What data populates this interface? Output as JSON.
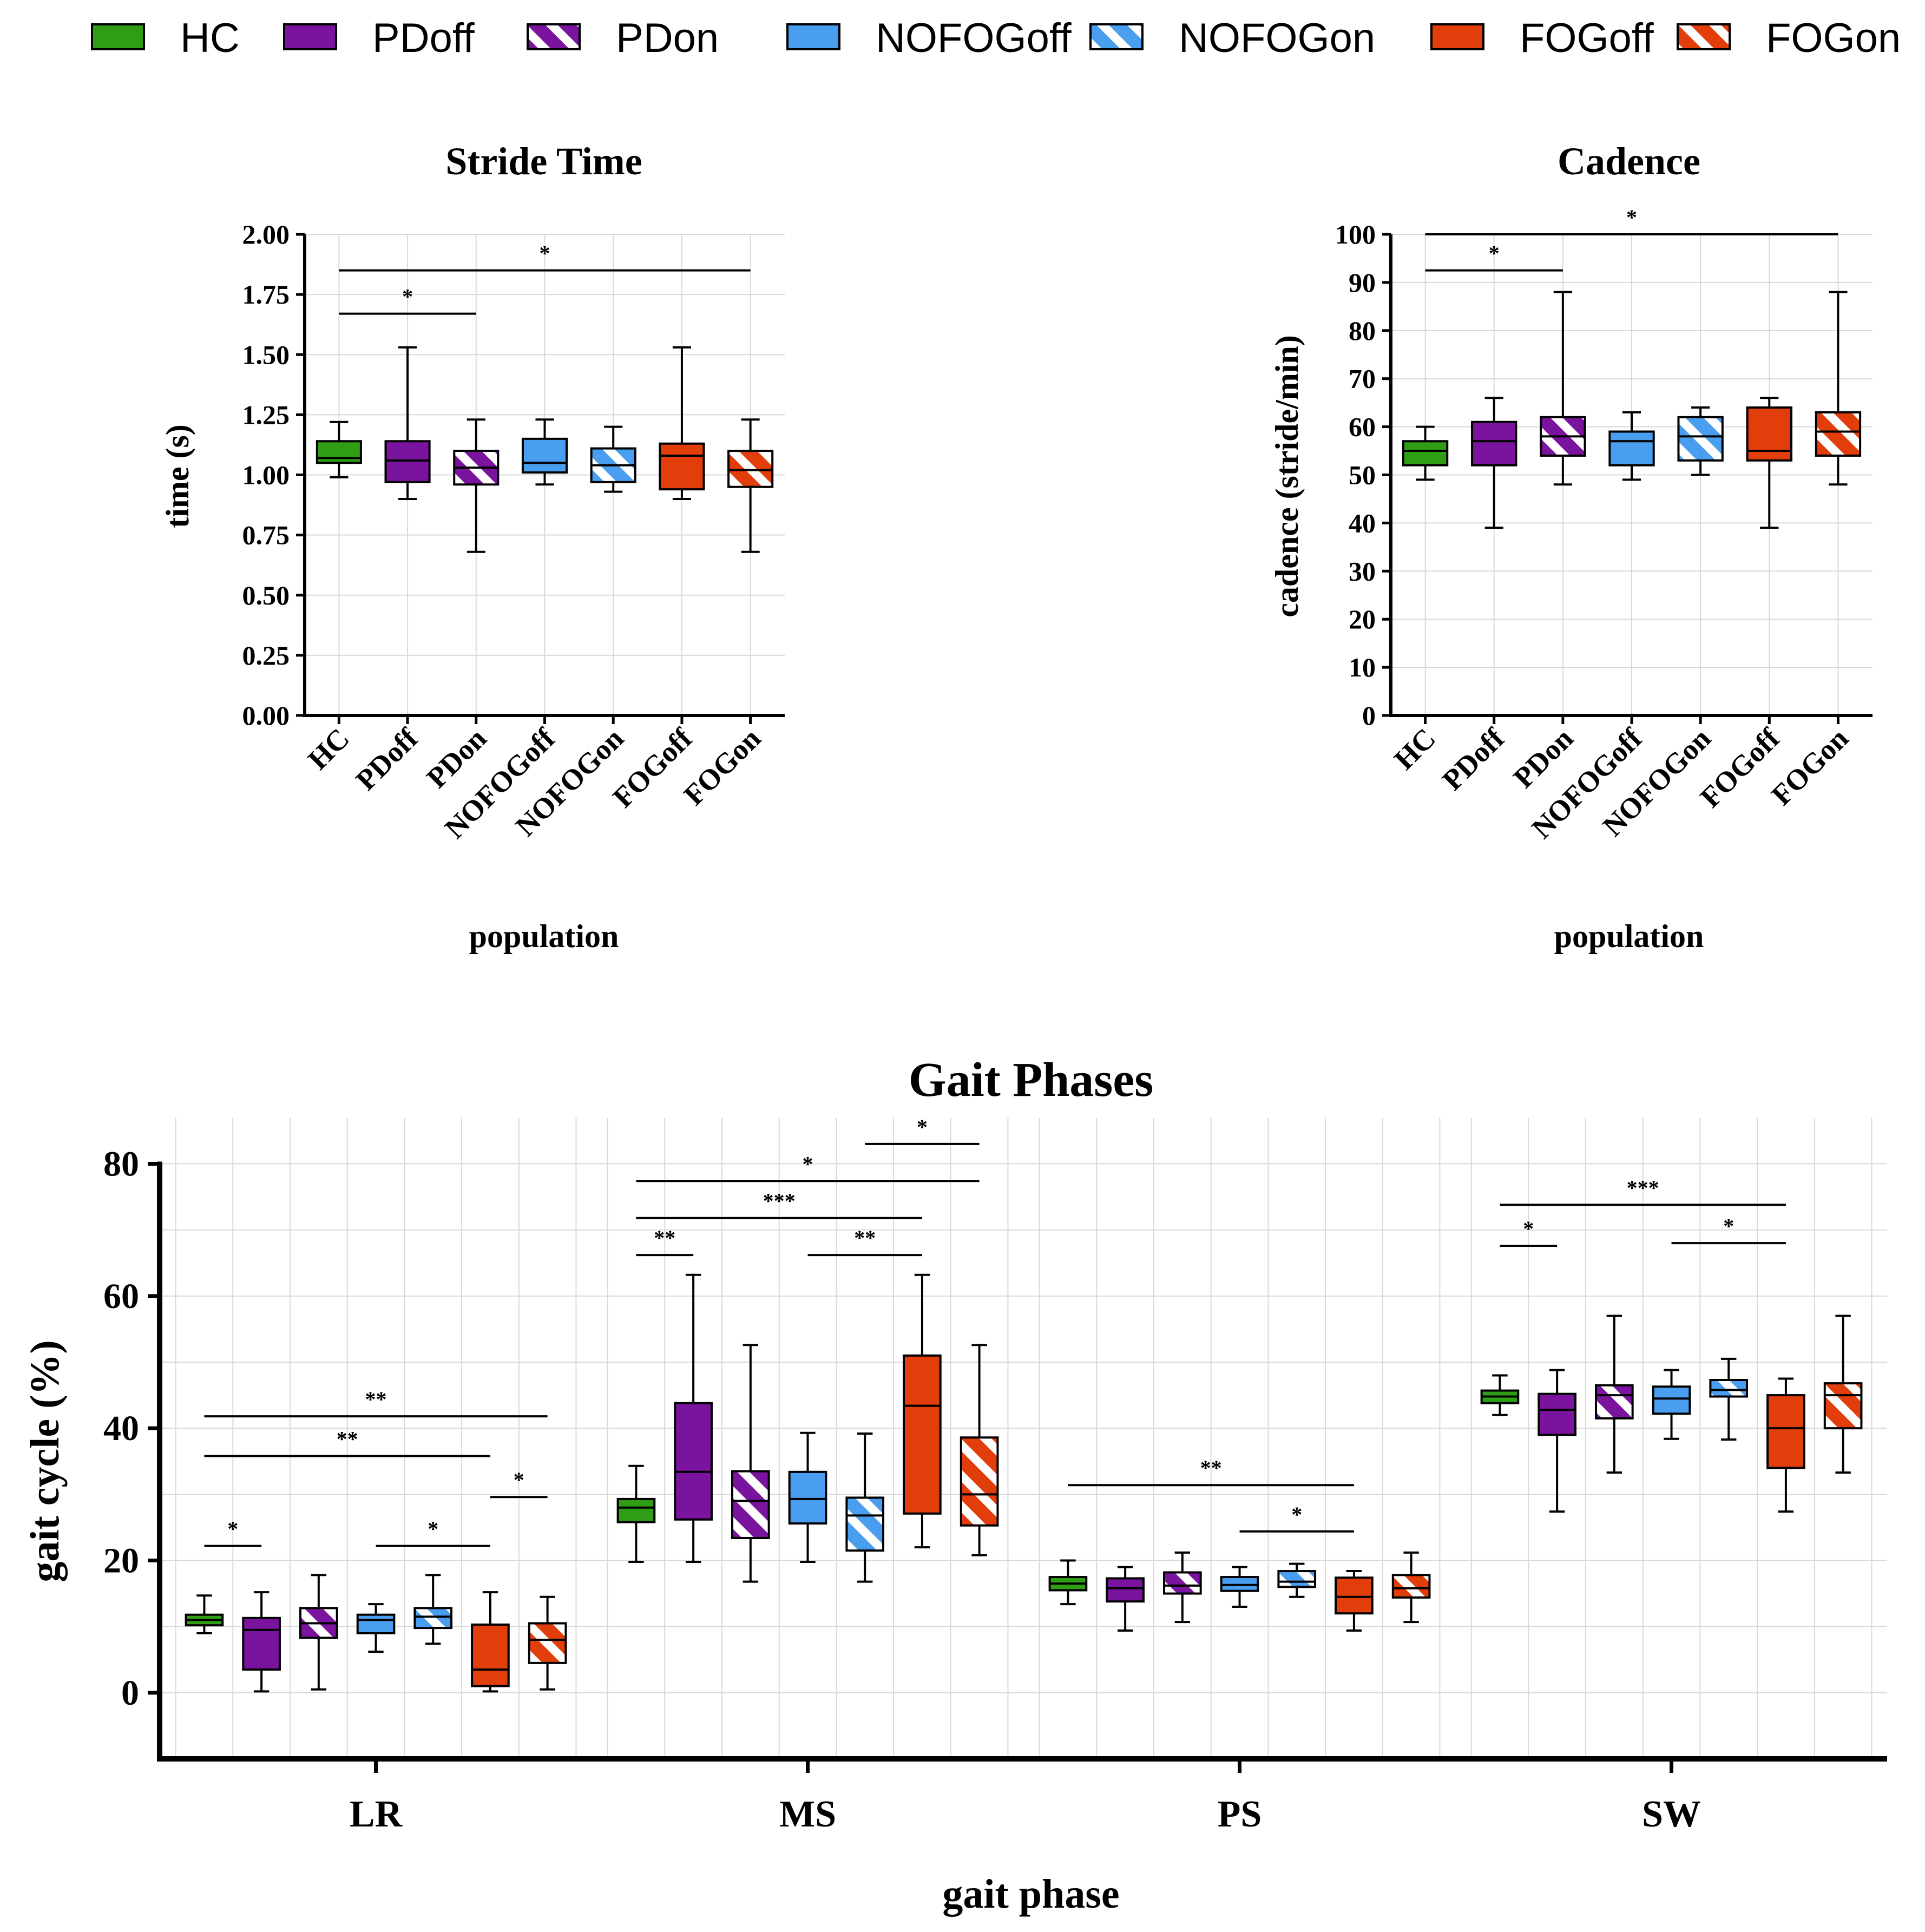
{
  "colors": {
    "HC": "#2f9e14",
    "PD": "#7a149f",
    "NOFOG": "#4a9ef0",
    "FOG": "#e23e0c",
    "grid": "#d9d9d9",
    "axis": "#000000"
  },
  "legend": [
    {
      "label": "HC",
      "group": "HC",
      "hatch": false
    },
    {
      "label": "PDoff",
      "group": "PD",
      "hatch": false
    },
    {
      "label": "PDon",
      "group": "PD",
      "hatch": true
    },
    {
      "label": "NOFOGoff",
      "group": "NOFOG",
      "hatch": false
    },
    {
      "label": "NOFOGon",
      "group": "NOFOG",
      "hatch": true
    },
    {
      "label": "FOGoff",
      "group": "FOG",
      "hatch": false
    },
    {
      "label": "FOGon",
      "group": "FOG",
      "hatch": true
    }
  ],
  "chart_data": [
    {
      "id": "stride",
      "type": "boxplot",
      "title": "Stride Time",
      "xlabel": "population",
      "ylabel": "time (s)",
      "ylim": [
        0,
        2
      ],
      "yticks": [
        "0.00",
        "0.25",
        "0.50",
        "0.75",
        "1.00",
        "1.25",
        "1.50",
        "1.75",
        "2.00"
      ],
      "categories": [
        "HC",
        "PDoff",
        "PDon",
        "NOFOGoff",
        "NOFOGon",
        "FOGoff",
        "FOGon"
      ],
      "boxes": [
        {
          "min": 0.99,
          "q1": 1.05,
          "median": 1.07,
          "q3": 1.14,
          "max": 1.22
        },
        {
          "min": 0.9,
          "q1": 0.97,
          "median": 1.06,
          "q3": 1.14,
          "max": 1.53
        },
        {
          "min": 0.68,
          "q1": 0.96,
          "median": 1.03,
          "q3": 1.1,
          "max": 1.23
        },
        {
          "min": 0.96,
          "q1": 1.01,
          "median": 1.05,
          "q3": 1.15,
          "max": 1.23
        },
        {
          "min": 0.93,
          "q1": 0.97,
          "median": 1.04,
          "q3": 1.11,
          "max": 1.2
        },
        {
          "min": 0.9,
          "q1": 0.94,
          "median": 1.08,
          "q3": 1.13,
          "max": 1.53
        },
        {
          "min": 0.68,
          "q1": 0.95,
          "median": 1.02,
          "q3": 1.1,
          "max": 1.23
        }
      ],
      "significance": [
        {
          "from": 0,
          "to": 2,
          "y": 1.67,
          "label": "*"
        },
        {
          "from": 0,
          "to": 6,
          "y": 1.85,
          "label": "*"
        }
      ]
    },
    {
      "id": "cadence",
      "type": "boxplot",
      "title": "Cadence",
      "xlabel": "population",
      "ylabel": "cadence (stride/min)",
      "ylim": [
        0,
        100
      ],
      "yticks": [
        "0",
        "10",
        "20",
        "30",
        "40",
        "50",
        "60",
        "70",
        "80",
        "90",
        "100"
      ],
      "categories": [
        "HC",
        "PDoff",
        "PDon",
        "NOFOGoff",
        "NOFOGon",
        "FOGoff",
        "FOGon"
      ],
      "boxes": [
        {
          "min": 49,
          "q1": 52,
          "median": 55,
          "q3": 57,
          "max": 60
        },
        {
          "min": 39,
          "q1": 52,
          "median": 57,
          "q3": 61,
          "max": 66
        },
        {
          "min": 48,
          "q1": 54,
          "median": 58,
          "q3": 62,
          "max": 88
        },
        {
          "min": 49,
          "q1": 52,
          "median": 57,
          "q3": 59,
          "max": 63
        },
        {
          "min": 50,
          "q1": 53,
          "median": 58,
          "q3": 62,
          "max": 64
        },
        {
          "min": 39,
          "q1": 53,
          "median": 55,
          "q3": 64,
          "max": 66
        },
        {
          "min": 48,
          "q1": 54,
          "median": 59,
          "q3": 63,
          "max": 88
        }
      ],
      "significance": [
        {
          "from": 0,
          "to": 2,
          "y": 92.5,
          "label": "*"
        },
        {
          "from": 0,
          "to": 6,
          "y": 100,
          "label": "*"
        }
      ]
    },
    {
      "id": "gait",
      "type": "boxplot",
      "title": "Gait Phases",
      "xlabel": "gait phase",
      "ylabel": "gait cycle (%)",
      "ylim": [
        -10,
        87
      ],
      "yticks": [
        "0",
        "20",
        "40",
        "60",
        "80"
      ],
      "ytick_values": [
        0,
        20,
        40,
        60,
        80
      ],
      "groups": [
        "LR",
        "MS",
        "PS",
        "SW"
      ],
      "series_order": [
        "HC",
        "PDoff",
        "PDon",
        "NOFOGoff",
        "NOFOGon",
        "FOGoff",
        "FOGon"
      ],
      "boxes": [
        [
          {
            "min": 9.0,
            "q1": 10.2,
            "median": 11.0,
            "q3": 11.8,
            "max": 14.7
          },
          {
            "min": 0.2,
            "q1": 3.5,
            "median": 9.5,
            "q3": 11.3,
            "max": 15.2
          },
          {
            "min": 0.5,
            "q1": 8.3,
            "median": 10.5,
            "q3": 12.8,
            "max": 17.8
          },
          {
            "min": 6.2,
            "q1": 9.0,
            "median": 11.0,
            "q3": 11.8,
            "max": 13.4
          },
          {
            "min": 7.4,
            "q1": 9.8,
            "median": 11.5,
            "q3": 12.8,
            "max": 17.8
          },
          {
            "min": 0.2,
            "q1": 1.0,
            "median": 3.5,
            "q3": 10.3,
            "max": 15.2
          },
          {
            "min": 0.5,
            "q1": 4.5,
            "median": 8.0,
            "q3": 10.5,
            "max": 14.5
          }
        ],
        [
          {
            "min": 19.8,
            "q1": 25.8,
            "median": 28.0,
            "q3": 29.3,
            "max": 34.3
          },
          {
            "min": 19.8,
            "q1": 26.2,
            "median": 33.4,
            "q3": 43.8,
            "max": 63.2
          },
          {
            "min": 16.8,
            "q1": 23.4,
            "median": 29.0,
            "q3": 33.5,
            "max": 52.6
          },
          {
            "min": 19.8,
            "q1": 25.6,
            "median": 29.3,
            "q3": 33.4,
            "max": 39.3
          },
          {
            "min": 16.8,
            "q1": 21.5,
            "median": 26.8,
            "q3": 29.5,
            "max": 39.2
          },
          {
            "min": 22.0,
            "q1": 27.1,
            "median": 43.4,
            "q3": 51.0,
            "max": 63.2
          },
          {
            "min": 20.8,
            "q1": 25.3,
            "median": 30.0,
            "q3": 38.6,
            "max": 52.6
          }
        ],
        [
          {
            "min": 13.4,
            "q1": 15.5,
            "median": 16.5,
            "q3": 17.5,
            "max": 20.0
          },
          {
            "min": 9.4,
            "q1": 13.8,
            "median": 15.8,
            "q3": 17.3,
            "max": 19.0
          },
          {
            "min": 10.7,
            "q1": 15.0,
            "median": 16.2,
            "q3": 18.2,
            "max": 21.2
          },
          {
            "min": 13.0,
            "q1": 15.4,
            "median": 16.3,
            "q3": 17.5,
            "max": 19.0
          },
          {
            "min": 14.5,
            "q1": 16.0,
            "median": 16.8,
            "q3": 18.4,
            "max": 19.5
          },
          {
            "min": 9.4,
            "q1": 12.0,
            "median": 14.5,
            "q3": 17.4,
            "max": 18.4
          },
          {
            "min": 10.7,
            "q1": 14.4,
            "median": 15.8,
            "q3": 17.8,
            "max": 21.2
          }
        ],
        [
          {
            "min": 42.0,
            "q1": 43.8,
            "median": 44.8,
            "q3": 45.7,
            "max": 48.0
          },
          {
            "min": 27.4,
            "q1": 39.0,
            "median": 42.8,
            "q3": 45.2,
            "max": 48.8
          },
          {
            "min": 33.3,
            "q1": 41.5,
            "median": 45.0,
            "q3": 46.5,
            "max": 57.0
          },
          {
            "min": 38.4,
            "q1": 42.2,
            "median": 44.5,
            "q3": 46.3,
            "max": 48.8
          },
          {
            "min": 38.3,
            "q1": 44.8,
            "median": 45.8,
            "q3": 47.3,
            "max": 50.5
          },
          {
            "min": 27.4,
            "q1": 34.0,
            "median": 40.0,
            "q3": 45.0,
            "max": 47.5
          },
          {
            "min": 33.3,
            "q1": 40.0,
            "median": 45.0,
            "q3": 46.8,
            "max": 57.0
          }
        ]
      ],
      "significance": [
        {
          "group": 0,
          "from": 0,
          "to": 1,
          "y": 22.2,
          "label": "*"
        },
        {
          "group": 0,
          "from": 3,
          "to": 5,
          "y": 22.2,
          "label": "*"
        },
        {
          "group": 0,
          "from": 5,
          "to": 6,
          "y": 29.6,
          "label": "*"
        },
        {
          "group": 0,
          "from": 0,
          "to": 5,
          "y": 35.8,
          "label": "**"
        },
        {
          "group": 0,
          "from": 0,
          "to": 6,
          "y": 41.8,
          "label": "**"
        },
        {
          "group": 1,
          "from": 0,
          "to": 1,
          "y": 66.2,
          "label": "**"
        },
        {
          "group": 1,
          "from": 3,
          "to": 5,
          "y": 66.2,
          "label": "**"
        },
        {
          "group": 1,
          "from": 0,
          "to": 5,
          "y": 71.8,
          "label": "***"
        },
        {
          "group": 1,
          "from": 0,
          "to": 6,
          "y": 77.4,
          "label": "*"
        },
        {
          "group": 1,
          "from": 4,
          "to": 6,
          "y": 83.0,
          "label": "*"
        },
        {
          "group": 2,
          "from": 3,
          "to": 5,
          "y": 24.4,
          "label": "*"
        },
        {
          "group": 2,
          "from": 0,
          "to": 5,
          "y": 31.4,
          "label": "**"
        },
        {
          "group": 3,
          "from": 0,
          "to": 1,
          "y": 67.6,
          "label": "*"
        },
        {
          "group": 3,
          "from": 3,
          "to": 5,
          "y": 68.0,
          "label": "*"
        },
        {
          "group": 3,
          "from": 0,
          "to": 5,
          "y": 73.8,
          "label": "***"
        }
      ]
    }
  ]
}
